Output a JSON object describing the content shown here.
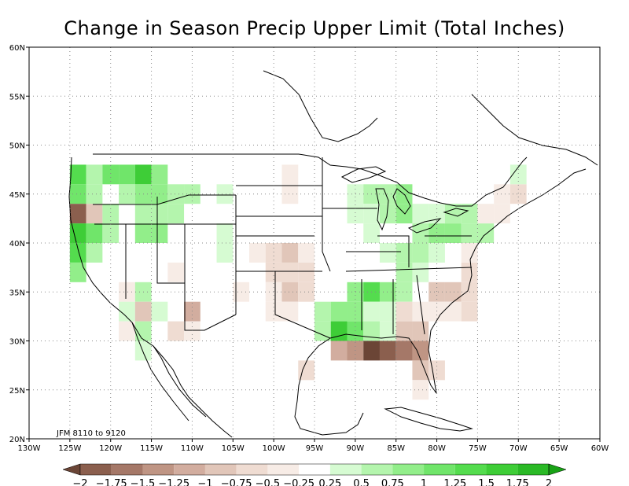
{
  "title": "Change in Season Precip Upper Limit (Total Inches)",
  "period_label": "JFM 8110  to  9120",
  "map": {
    "lon_range": [
      -130,
      -60
    ],
    "lat_range": [
      20,
      60
    ],
    "lon_ticks": [
      "130W",
      "125W",
      "120W",
      "115W",
      "110W",
      "105W",
      "100W",
      "95W",
      "90W",
      "85W",
      "80W",
      "75W",
      "70W",
      "65W",
      "60W"
    ],
    "lat_ticks": [
      "20N",
      "25N",
      "30N",
      "35N",
      "40N",
      "45N",
      "50N",
      "55N",
      "60N"
    ],
    "grid": "dotted",
    "cell_size_deg": 2
  },
  "colorbar": {
    "labels": [
      "-2",
      "-1.75",
      "-1.5",
      "-1.25",
      "-1",
      "-0.75",
      "-0.5",
      "-0.25",
      "0.25",
      "0.5",
      "0.75",
      "1",
      "1.25",
      "1.5",
      "1.75",
      "2"
    ],
    "colors": {
      "-2": "#6b4536",
      "-1.75": "#8b5f4e",
      "-1.5": "#a57868",
      "-1.25": "#bf9584",
      "-1": "#d2ad9f",
      "-0.75": "#e1c6b9",
      "-0.5": "#efdcd2",
      "-0.25": "#f7ece6",
      "0": "#ffffff",
      "0.25": "#d6fbd2",
      "0.5": "#b4f5ad",
      "0.75": "#92ee8a",
      "1": "#70e56a",
      "1.25": "#54dc4e",
      "1.5": "#3ecd37",
      "1.75": "#2ab926",
      "2": "#18a215"
    }
  },
  "cells": [
    {
      "lon": -124,
      "lat": 47,
      "v": 1.25
    },
    {
      "lon": -124,
      "lat": 45,
      "v": 1.0
    },
    {
      "lon": -124,
      "lat": 43,
      "v": -1.75
    },
    {
      "lon": -124,
      "lat": 41,
      "v": 1.5
    },
    {
      "lon": -124,
      "lat": 39,
      "v": 1.25
    },
    {
      "lon": -124,
      "lat": 37,
      "v": 0.75
    },
    {
      "lon": -122,
      "lat": 47,
      "v": 0.5
    },
    {
      "lon": -122,
      "lat": 45,
      "v": 0.5
    },
    {
      "lon": -122,
      "lat": 43,
      "v": -0.75
    },
    {
      "lon": -122,
      "lat": 41,
      "v": 1.0
    },
    {
      "lon": -122,
      "lat": 39,
      "v": 0.5
    },
    {
      "lon": -120,
      "lat": 47,
      "v": 1.0
    },
    {
      "lon": -120,
      "lat": 43,
      "v": 0.5
    },
    {
      "lon": -120,
      "lat": 41,
      "v": 0.5
    },
    {
      "lon": -118,
      "lat": 47,
      "v": 1.0
    },
    {
      "lon": -118,
      "lat": 45,
      "v": 0.5
    },
    {
      "lon": -116,
      "lat": 47,
      "v": 1.5
    },
    {
      "lon": -116,
      "lat": 45,
      "v": 0.75
    },
    {
      "lon": -116,
      "lat": 43,
      "v": 0.5
    },
    {
      "lon": -116,
      "lat": 41,
      "v": 0.75
    },
    {
      "lon": -114,
      "lat": 47,
      "v": 0.75
    },
    {
      "lon": -114,
      "lat": 45,
      "v": 0.75
    },
    {
      "lon": -114,
      "lat": 43,
      "v": 0.5
    },
    {
      "lon": -114,
      "lat": 41,
      "v": 0.75
    },
    {
      "lon": -112,
      "lat": 45,
      "v": 0.5
    },
    {
      "lon": -112,
      "lat": 43,
      "v": 0.5
    },
    {
      "lon": -110,
      "lat": 45,
      "v": 0.5
    },
    {
      "lon": -106,
      "lat": 45,
      "v": 0.25
    },
    {
      "lon": -106,
      "lat": 41,
      "v": 0.25
    },
    {
      "lon": -106,
      "lat": 39,
      "v": 0.25
    },
    {
      "lon": -98,
      "lat": 47,
      "v": -0.25
    },
    {
      "lon": -98,
      "lat": 45,
      "v": -0.25
    },
    {
      "lon": -102,
      "lat": 39,
      "v": -0.25
    },
    {
      "lon": -100,
      "lat": 39,
      "v": -0.5
    },
    {
      "lon": -98,
      "lat": 39,
      "v": -0.75
    },
    {
      "lon": -96,
      "lat": 39,
      "v": -0.25
    },
    {
      "lon": -100,
      "lat": 37,
      "v": -0.5
    },
    {
      "lon": -98,
      "lat": 37,
      "v": -0.5
    },
    {
      "lon": -96,
      "lat": 37,
      "v": -0.5
    },
    {
      "lon": -104,
      "lat": 35,
      "v": -0.25
    },
    {
      "lon": -100,
      "lat": 35,
      "v": -0.25
    },
    {
      "lon": -98,
      "lat": 35,
      "v": -0.75
    },
    {
      "lon": -96,
      "lat": 35,
      "v": -0.5
    },
    {
      "lon": -100,
      "lat": 33,
      "v": -0.25
    },
    {
      "lon": -98,
      "lat": 33,
      "v": -0.25
    },
    {
      "lon": -118,
      "lat": 35,
      "v": -0.25
    },
    {
      "lon": -116,
      "lat": 35,
      "v": 0.5
    },
    {
      "lon": -118,
      "lat": 33,
      "v": 0.25
    },
    {
      "lon": -116,
      "lat": 33,
      "v": -0.75
    },
    {
      "lon": -114,
      "lat": 33,
      "v": 0.25
    },
    {
      "lon": -116,
      "lat": 31,
      "v": 0.5
    },
    {
      "lon": -110,
      "lat": 33,
      "v": -1.0
    },
    {
      "lon": -112,
      "lat": 31,
      "v": -0.5
    },
    {
      "lon": -110,
      "lat": 31,
      "v": -0.25
    },
    {
      "lon": -118,
      "lat": 31,
      "v": -0.25
    },
    {
      "lon": -116,
      "lat": 29,
      "v": 0.25
    },
    {
      "lon": -112,
      "lat": 37,
      "v": -0.25
    },
    {
      "lon": -94,
      "lat": 33,
      "v": 0.5
    },
    {
      "lon": -92,
      "lat": 33,
      "v": 0.75
    },
    {
      "lon": -94,
      "lat": 31,
      "v": 0.5
    },
    {
      "lon": -92,
      "lat": 31,
      "v": 1.5
    },
    {
      "lon": -90,
      "lat": 31,
      "v": 1.0
    },
    {
      "lon": -90,
      "lat": 33,
      "v": 0.75
    },
    {
      "lon": -90,
      "lat": 35,
      "v": 0.75
    },
    {
      "lon": -88,
      "lat": 35,
      "v": 1.25
    },
    {
      "lon": -86,
      "lat": 35,
      "v": 0.75
    },
    {
      "lon": -84,
      "lat": 35,
      "v": 0.5
    },
    {
      "lon": -88,
      "lat": 33,
      "v": 0.25
    },
    {
      "lon": -86,
      "lat": 33,
      "v": 0.25
    },
    {
      "lon": -88,
      "lat": 31,
      "v": 0.5
    },
    {
      "lon": -86,
      "lat": 31,
      "v": 0.25
    },
    {
      "lon": -90,
      "lat": 29,
      "v": -1.25
    },
    {
      "lon": -88,
      "lat": 29,
      "v": -2.0
    },
    {
      "lon": -86,
      "lat": 29,
      "v": -1.75
    },
    {
      "lon": -84,
      "lat": 29,
      "v": -1.5
    },
    {
      "lon": -82,
      "lat": 29,
      "v": -1.25
    },
    {
      "lon": -92,
      "lat": 29,
      "v": -1.0
    },
    {
      "lon": -96,
      "lat": 27,
      "v": -0.5
    },
    {
      "lon": -84,
      "lat": 31,
      "v": -0.75
    },
    {
      "lon": -82,
      "lat": 31,
      "v": -0.75
    },
    {
      "lon": -84,
      "lat": 33,
      "v": -0.5
    },
    {
      "lon": -82,
      "lat": 33,
      "v": -0.25
    },
    {
      "lon": -82,
      "lat": 27,
      "v": -0.75
    },
    {
      "lon": -80,
      "lat": 27,
      "v": -0.5
    },
    {
      "lon": -82,
      "lat": 25,
      "v": -0.25
    },
    {
      "lon": -80,
      "lat": 35,
      "v": -0.75
    },
    {
      "lon": -78,
      "lat": 35,
      "v": -0.75
    },
    {
      "lon": -76,
      "lat": 35,
      "v": -0.5
    },
    {
      "lon": -80,
      "lat": 33,
      "v": -0.25
    },
    {
      "lon": -78,
      "lat": 33,
      "v": -0.25
    },
    {
      "lon": -76,
      "lat": 33,
      "v": -0.5
    },
    {
      "lon": -76,
      "lat": 37,
      "v": -0.5
    },
    {
      "lon": -76,
      "lat": 39,
      "v": -0.25
    },
    {
      "lon": -84,
      "lat": 37,
      "v": 0.5
    },
    {
      "lon": -82,
      "lat": 37,
      "v": 0.25
    },
    {
      "lon": -84,
      "lat": 39,
      "v": 0.5
    },
    {
      "lon": -82,
      "lat": 39,
      "v": 0.5
    },
    {
      "lon": -80,
      "lat": 39,
      "v": 0.25
    },
    {
      "lon": -86,
      "lat": 39,
      "v": 0.25
    },
    {
      "lon": -82,
      "lat": 41,
      "v": 0.5
    },
    {
      "lon": -80,
      "lat": 41,
      "v": 0.75
    },
    {
      "lon": -78,
      "lat": 41,
      "v": 0.75
    },
    {
      "lon": -76,
      "lat": 41,
      "v": 0.5
    },
    {
      "lon": -74,
      "lat": 41,
      "v": 0.5
    },
    {
      "lon": -86,
      "lat": 43,
      "v": 0.5
    },
    {
      "lon": -84,
      "lat": 43,
      "v": 0.75
    },
    {
      "lon": -82,
      "lat": 43,
      "v": 0.25
    },
    {
      "lon": -80,
      "lat": 43,
      "v": 0.25
    },
    {
      "lon": -78,
      "lat": 43,
      "v": 0.5
    },
    {
      "lon": -76,
      "lat": 43,
      "v": 0.5
    },
    {
      "lon": -90,
      "lat": 45,
      "v": 0.25
    },
    {
      "lon": -88,
      "lat": 45,
      "v": 0.5
    },
    {
      "lon": -86,
      "lat": 45,
      "v": 0.5
    },
    {
      "lon": -84,
      "lat": 45,
      "v": 0.75
    },
    {
      "lon": -90,
      "lat": 43,
      "v": 0.25
    },
    {
      "lon": -88,
      "lat": 43,
      "v": 0.25
    },
    {
      "lon": -88,
      "lat": 41,
      "v": 0.25
    },
    {
      "lon": -72,
      "lat": 45,
      "v": -0.25
    },
    {
      "lon": -70,
      "lat": 45,
      "v": -0.5
    },
    {
      "lon": -74,
      "lat": 43,
      "v": -0.25
    },
    {
      "lon": -72,
      "lat": 43,
      "v": -0.25
    },
    {
      "lon": -70,
      "lat": 47,
      "v": 0.25
    }
  ]
}
